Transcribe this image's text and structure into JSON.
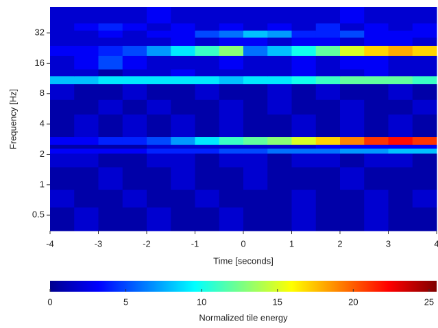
{
  "chart_data": {
    "type": "heatmap",
    "xlabel": "Time [seconds]",
    "ylabel": "Frequency [Hz]",
    "colorbar_label": "Normalized tile energy",
    "xlim": [
      -4,
      4
    ],
    "xticks": [
      -4,
      -3,
      -2,
      -1,
      0,
      1,
      2,
      3,
      4
    ],
    "ylim": [
      0.35,
      58
    ],
    "yscale": "log",
    "yticks": [
      0.5,
      1,
      2,
      4,
      8,
      16,
      32
    ],
    "clim": [
      0,
      25.5
    ],
    "cticks": [
      0,
      5,
      10,
      15,
      20,
      25
    ],
    "colormap": "jet",
    "xbins": [
      -4,
      -3.5,
      -3,
      -2.5,
      -2,
      -1.5,
      -1,
      -0.5,
      0,
      0.5,
      1,
      1.5,
      2,
      2.5,
      3,
      3.5,
      4
    ],
    "ybins": [
      0.35,
      0.6,
      0.9,
      1.5,
      2.05,
      2.3,
      2.5,
      3,
      5,
      7,
      10,
      12,
      14,
      19,
      24,
      29,
      34,
      40,
      58
    ],
    "values": [
      [
        1,
        2,
        1,
        1,
        2,
        1,
        1,
        2,
        1,
        1,
        2,
        1,
        1,
        2,
        1,
        1
      ],
      [
        2,
        1,
        1,
        2,
        1,
        1,
        2,
        1,
        1,
        1,
        2,
        1,
        1,
        2,
        1,
        2
      ],
      [
        1,
        1,
        2,
        1,
        1,
        2,
        1,
        1,
        2,
        1,
        1,
        1,
        2,
        1,
        1,
        1
      ],
      [
        2,
        2,
        1,
        1,
        2,
        2,
        1,
        2,
        2,
        1,
        2,
        2,
        1,
        2,
        2,
        1
      ],
      [
        3,
        3,
        3,
        3,
        4,
        4,
        4,
        5,
        5,
        6,
        6,
        6,
        7,
        7,
        8,
        8
      ],
      [
        1,
        1,
        1,
        1,
        2,
        2,
        2,
        2,
        2,
        2,
        2,
        3,
        3,
        3,
        3,
        3
      ],
      [
        3,
        3,
        4,
        4,
        5,
        7,
        9,
        11,
        12,
        13,
        15,
        17,
        19,
        21,
        22,
        21
      ],
      [
        1,
        2,
        1,
        2,
        1,
        2,
        1,
        2,
        1,
        1,
        2,
        1,
        2,
        1,
        2,
        1
      ],
      [
        1,
        1,
        2,
        1,
        2,
        1,
        1,
        2,
        1,
        2,
        1,
        1,
        2,
        1,
        1,
        2
      ],
      [
        2,
        1,
        1,
        2,
        1,
        1,
        2,
        1,
        1,
        2,
        1,
        2,
        1,
        1,
        2,
        1
      ],
      [
        8,
        8,
        9,
        9,
        9,
        9,
        9,
        8,
        9,
        9,
        10,
        11,
        12,
        12,
        12,
        11
      ],
      [
        2,
        2,
        1,
        2,
        2,
        3,
        2,
        2,
        2,
        2,
        3,
        2,
        2,
        3,
        2,
        2
      ],
      [
        2,
        3,
        5,
        3,
        2,
        2,
        2,
        3,
        2,
        2,
        3,
        2,
        3,
        3,
        2,
        2
      ],
      [
        3,
        3,
        4,
        5,
        7,
        9,
        11,
        13,
        6,
        8,
        10,
        12,
        15,
        17,
        18,
        17
      ],
      [
        2,
        2,
        2,
        2,
        2,
        3,
        2,
        3,
        3,
        2,
        3,
        3,
        2,
        3,
        3,
        2
      ],
      [
        2,
        2,
        3,
        2,
        3,
        3,
        5,
        6,
        8,
        7,
        4,
        4,
        5,
        3,
        3,
        3
      ],
      [
        2,
        3,
        4,
        3,
        2,
        3,
        2,
        3,
        2,
        3,
        2,
        4,
        2,
        3,
        2,
        3
      ],
      [
        2,
        2,
        2,
        2,
        3,
        2,
        2,
        2,
        2,
        2,
        2,
        2,
        3,
        2,
        2,
        2
      ]
    ]
  }
}
